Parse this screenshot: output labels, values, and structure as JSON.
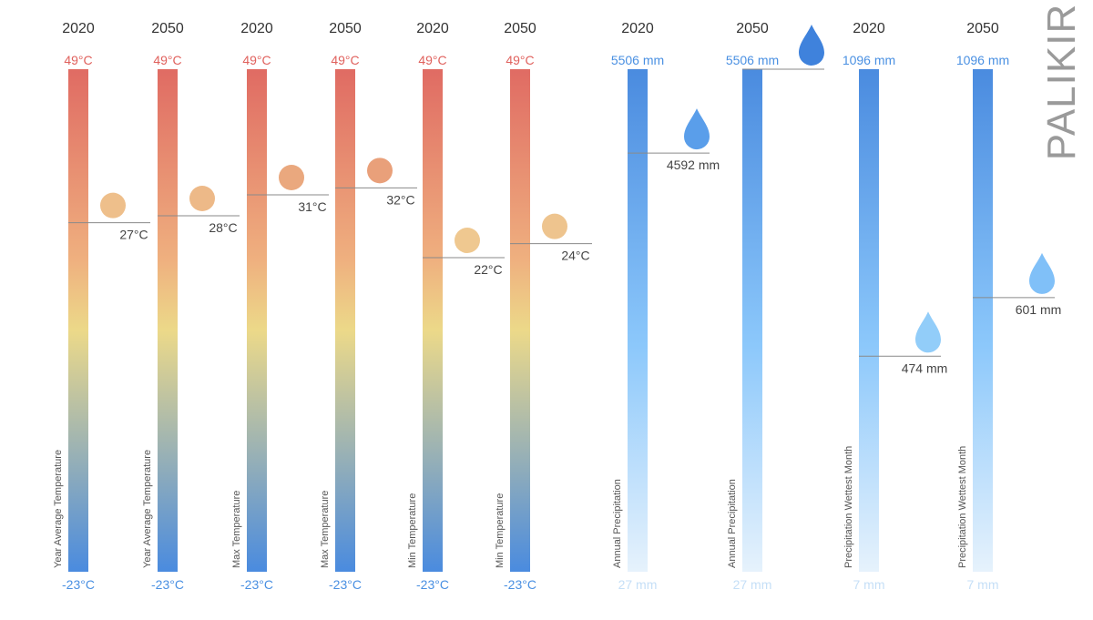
{
  "city": "PALIKIR",
  "colors": {
    "temp_top": "#e06b63",
    "temp_mid_warm": "#efb07f",
    "temp_yellow": "#ecd989",
    "temp_bottom": "#4a8bdf",
    "precip_top": "#4a8bdf",
    "precip_mid": "#8cc8fb",
    "precip_bottom": "#e6f2fc",
    "temp_max_label": "#e0615d",
    "temp_min_label": "#4a90e2",
    "precip_max_label": "#4a90e2",
    "precip_min_label": "#c5dff7",
    "marker_line": "#8a8a8a",
    "value_text": "#444444",
    "year_text": "#333333",
    "axis_title_text": "#555555"
  },
  "chart_data": {
    "type": "bar",
    "series": [
      {
        "year": "2020",
        "label": "Year Average Temperature",
        "kind": "temperature",
        "value": 27,
        "value_text": "27°C",
        "max_text": "49°C",
        "min_text": "-23°C",
        "ylim": [
          -23,
          49
        ],
        "marker": "circle",
        "marker_color": "#eebf8b"
      },
      {
        "year": "2050",
        "label": "Year Average Temperature",
        "kind": "temperature",
        "value": 28,
        "value_text": "28°C",
        "max_text": "49°C",
        "min_text": "-23°C",
        "ylim": [
          -23,
          49
        ],
        "marker": "circle",
        "marker_color": "#edb988"
      },
      {
        "year": "2020",
        "label": "Max Temperature",
        "kind": "temperature",
        "value": 31,
        "value_text": "31°C",
        "max_text": "49°C",
        "min_text": "-23°C",
        "ylim": [
          -23,
          49
        ],
        "marker": "circle",
        "marker_color": "#eaa87e"
      },
      {
        "year": "2050",
        "label": "Max Temperature",
        "kind": "temperature",
        "value": 32,
        "value_text": "32°C",
        "max_text": "49°C",
        "min_text": "-23°C",
        "ylim": [
          -23,
          49
        ],
        "marker": "circle",
        "marker_color": "#e9a07a"
      },
      {
        "year": "2020",
        "label": "Min Temperature",
        "kind": "temperature",
        "value": 22,
        "value_text": "22°C",
        "max_text": "49°C",
        "min_text": "-23°C",
        "ylim": [
          -23,
          49
        ],
        "marker": "circle",
        "marker_color": "#efc890"
      },
      {
        "year": "2050",
        "label": "Min Temperature",
        "kind": "temperature",
        "value": 24,
        "value_text": "24°C",
        "max_text": "49°C",
        "min_text": "-23°C",
        "ylim": [
          -23,
          49
        ],
        "marker": "circle",
        "marker_color": "#eec48e"
      },
      {
        "year": "2020",
        "label": "Annual Precipitation",
        "kind": "precipitation",
        "value": 4592,
        "value_text": "4592 mm",
        "max_text": "5506 mm",
        "min_text": "27 mm",
        "ylim": [
          27,
          5506
        ],
        "marker": "drop",
        "marker_color": "#5a9eea"
      },
      {
        "year": "2050",
        "label": "Annual Precipitation",
        "kind": "precipitation",
        "value": 5506,
        "value_text": "",
        "max_text": "5506 mm",
        "min_text": "27 mm",
        "ylim": [
          27,
          5506
        ],
        "marker": "drop",
        "marker_color": "#3f82dc"
      },
      {
        "year": "2020",
        "label": "Precipitation Wettest Month",
        "kind": "precipitation",
        "value": 474,
        "value_text": "474 mm",
        "max_text": "1096 mm",
        "min_text": "7 mm",
        "ylim": [
          7,
          1096
        ],
        "marker": "drop",
        "marker_color": "#92cdf9"
      },
      {
        "year": "2050",
        "label": "Precipitation Wettest Month",
        "kind": "precipitation",
        "value": 601,
        "value_text": "601 mm",
        "max_text": "1096 mm",
        "min_text": "7 mm",
        "ylim": [
          7,
          1096
        ],
        "marker": "drop",
        "marker_color": "#80c0f8"
      }
    ]
  }
}
